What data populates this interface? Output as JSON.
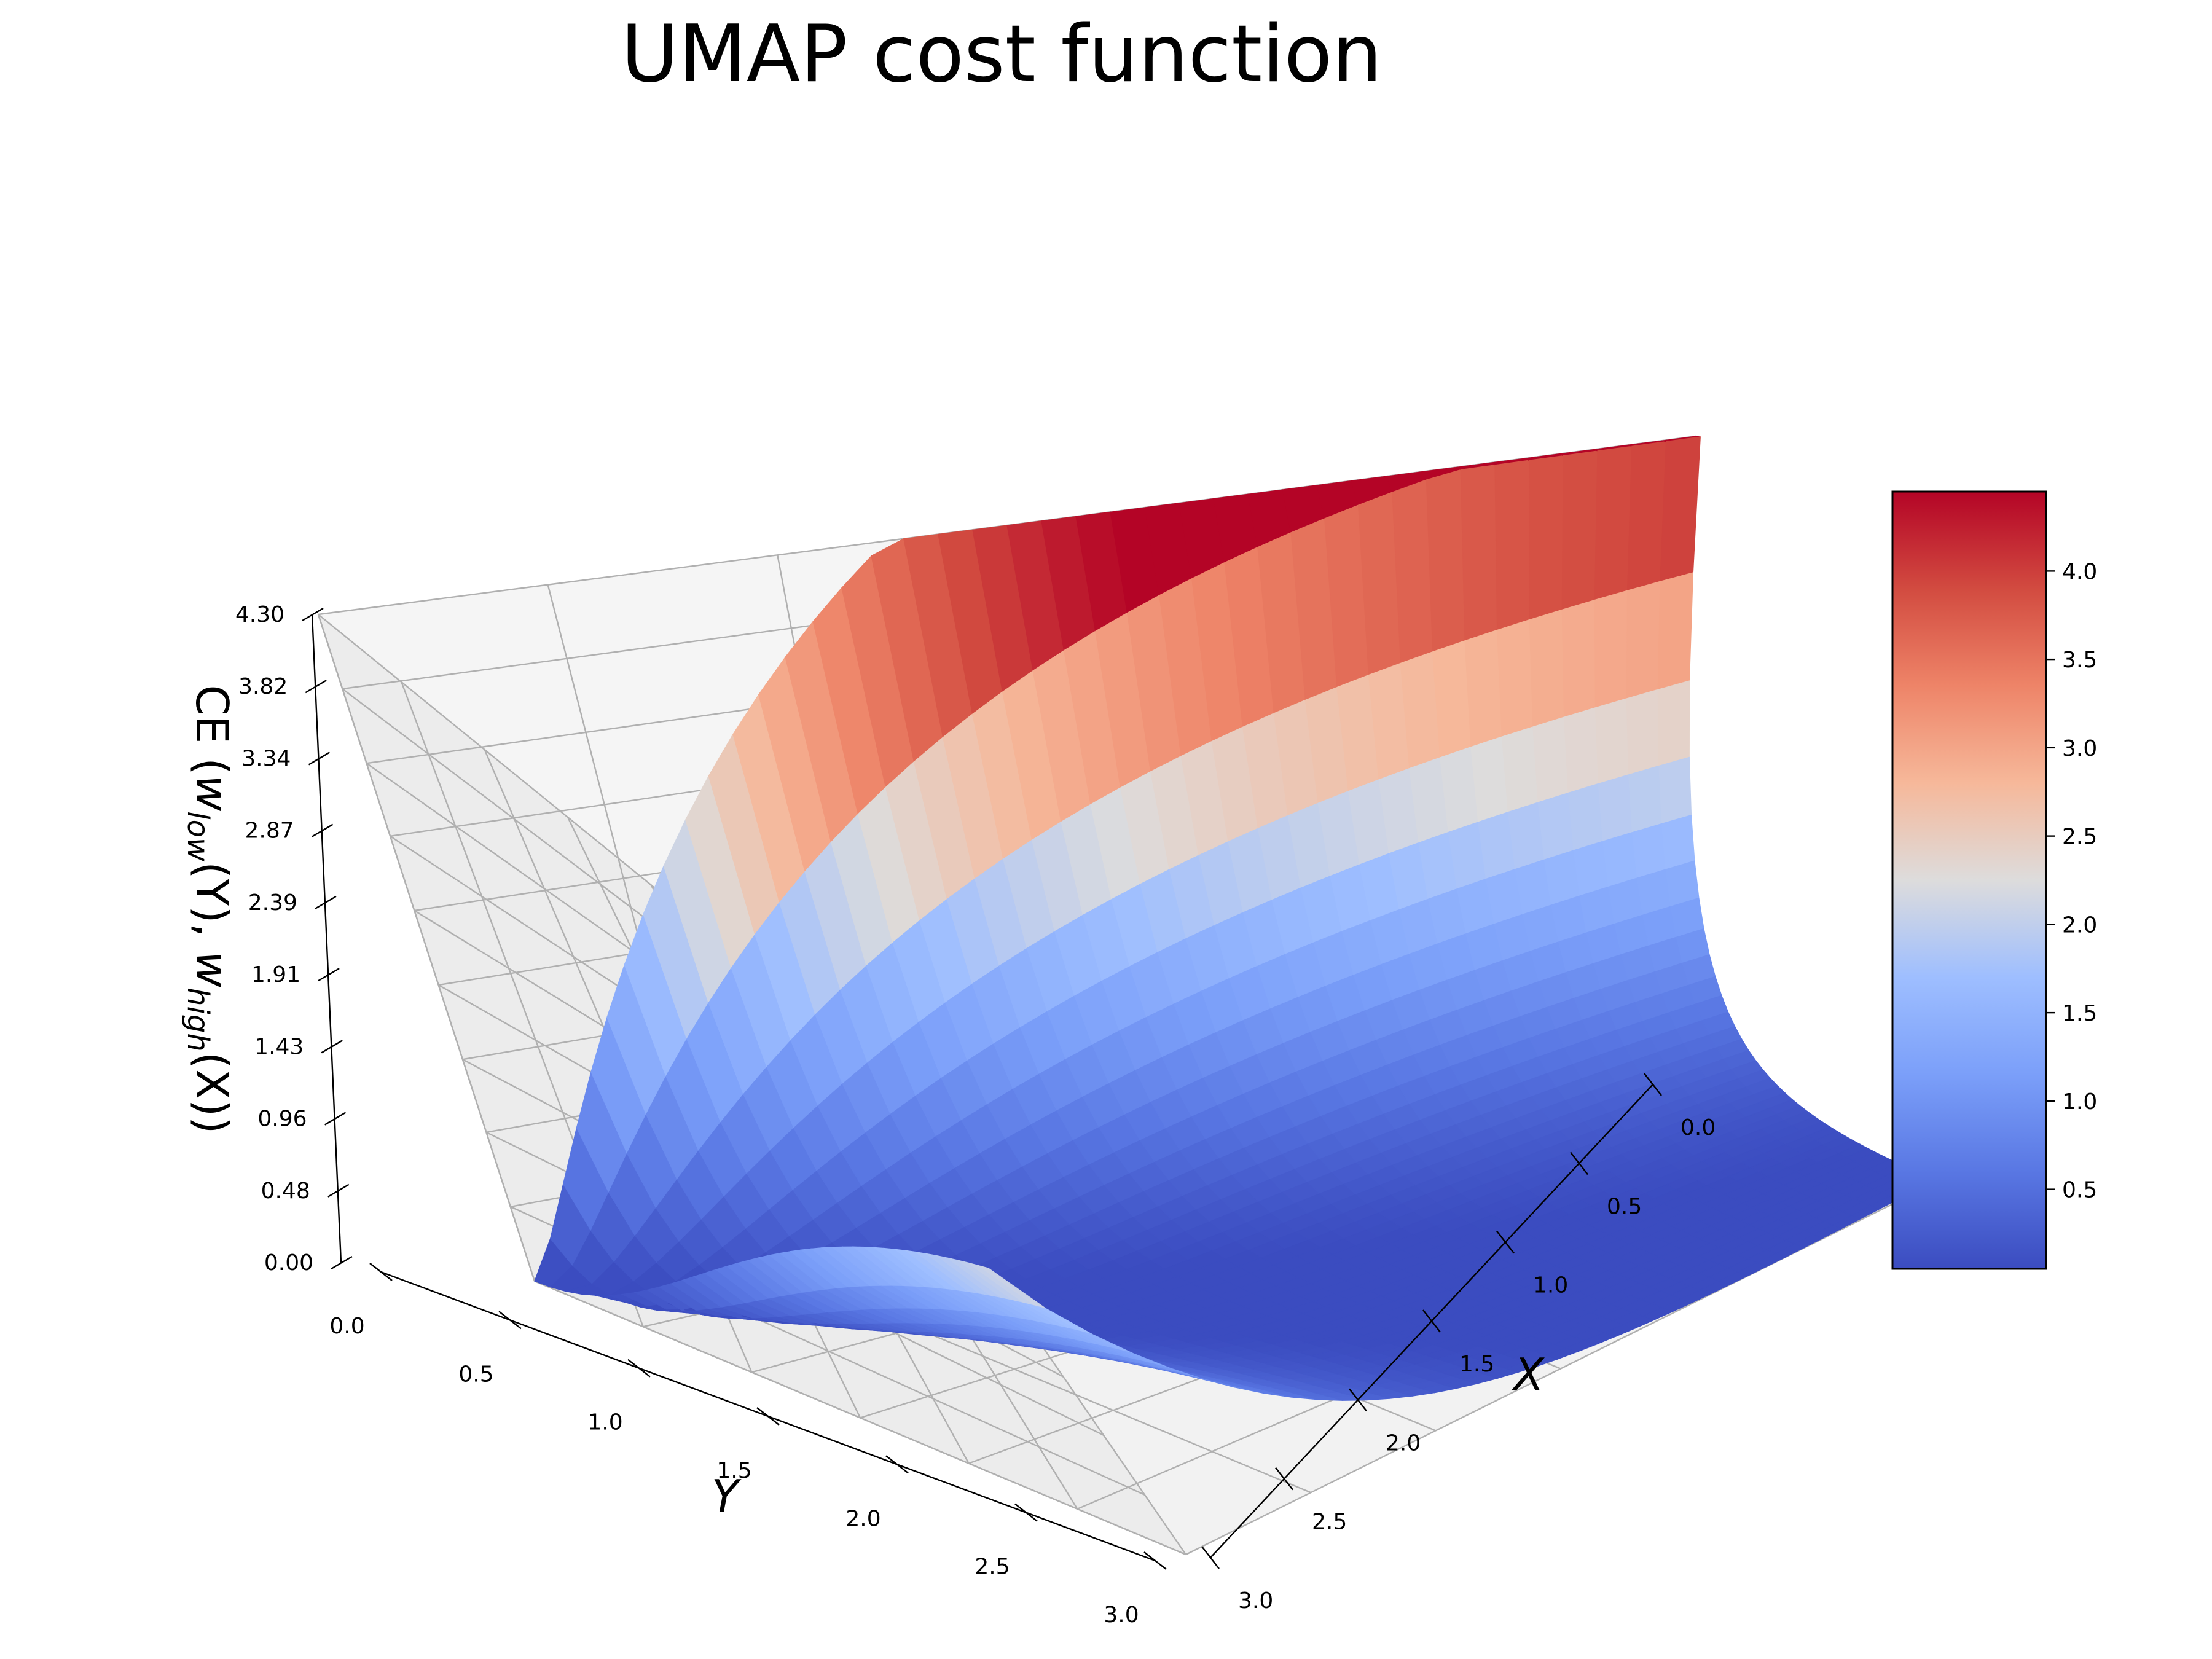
{
  "chart_data": {
    "type": "surface",
    "title": "UMAP cost function",
    "xlabel": "X",
    "ylabel": "Y",
    "zlabel": {
      "prefix": "CE (",
      "w1": "w",
      "sub1": "low",
      "arg1": "(Y), ",
      "w2": "w",
      "sub2": "high",
      "arg2": "(X))"
    },
    "x_ticks": [
      "0.0",
      "0.5",
      "1.0",
      "1.5",
      "2.0",
      "2.5",
      "3.0"
    ],
    "y_ticks": [
      "0.0",
      "0.5",
      "1.0",
      "1.5",
      "2.0",
      "2.5",
      "3.0"
    ],
    "z_ticks": [
      "0.00",
      "0.48",
      "0.96",
      "1.43",
      "1.91",
      "2.39",
      "2.87",
      "3.34",
      "3.82",
      "4.30"
    ],
    "xlim": [
      0,
      3
    ],
    "ylim": [
      0,
      3
    ],
    "zlim": [
      0,
      4.3
    ],
    "colormap": "coolwarm",
    "colorbar_ticks": [
      "0.5",
      "1.0",
      "1.5",
      "2.0",
      "2.5",
      "3.0",
      "3.5",
      "4.0"
    ],
    "colorbar_range": [
      0.05,
      4.45
    ],
    "surface_samples": [
      {
        "x": 0.0,
        "y": 0.0,
        "z": 4.3
      },
      {
        "x": 0.0,
        "y": 3.0,
        "z": 0.05
      },
      {
        "x": 3.0,
        "y": 0.0,
        "z": 0.12
      },
      {
        "x": 3.0,
        "y": 3.0,
        "z": 2.2
      }
    ],
    "grid": true
  }
}
